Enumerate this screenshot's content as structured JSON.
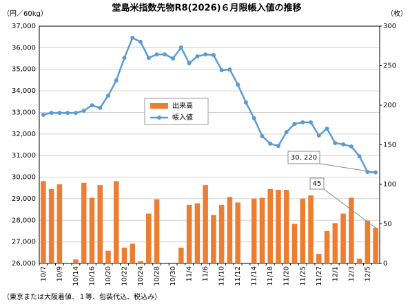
{
  "chart_data": {
    "type": "combo",
    "title": "堂島米指数先物R8(2026)６月限帳入値の推移",
    "y_unit": "（円／60kg）",
    "y2_unit": "（枚）",
    "footnote": "（東京または大阪着値、１等、包装代込、税込み）",
    "categories": [
      "10/7",
      null,
      "10/9",
      null,
      "10/14",
      null,
      "10/16",
      null,
      "10/20",
      null,
      "10/22",
      null,
      "10/24",
      null,
      "10/28",
      null,
      "10/30",
      null,
      "11/4",
      null,
      "11/6",
      null,
      "11/10",
      null,
      "11/12",
      null,
      "11/14",
      null,
      "11/18",
      null,
      "11/20",
      null,
      "11/25",
      null,
      "11/27",
      null,
      "12/1",
      null,
      "12/3",
      null,
      "12/5",
      null
    ],
    "series": [
      {
        "name": "出来高",
        "type": "bar",
        "axis": "y2",
        "color": "#ed7d31",
        "values": [
          104,
          94,
          100,
          0,
          5,
          102,
          83,
          99,
          16,
          104,
          20,
          25,
          3,
          63,
          81,
          0,
          0,
          20,
          74,
          76,
          99,
          61,
          74,
          84,
          77,
          0,
          82,
          83,
          94,
          93,
          93,
          50,
          82,
          86,
          12,
          41,
          51,
          63,
          83,
          6,
          54,
          45
        ],
        "value_labels": [
          null,
          null,
          null,
          null,
          null,
          null,
          null,
          null,
          null,
          null,
          null,
          null,
          null,
          null,
          null,
          null,
          null,
          null,
          null,
          null,
          null,
          null,
          null,
          null,
          null,
          null,
          null,
          null,
          null,
          null,
          null,
          null,
          null,
          null,
          null,
          null,
          null,
          null,
          null,
          null,
          null,
          "45"
        ]
      },
      {
        "name": "帳入値",
        "type": "line",
        "color": "#5b9bd5",
        "values": [
          32890,
          32980,
          32980,
          32980,
          32980,
          33080,
          33330,
          33210,
          33780,
          34480,
          35530,
          36460,
          36270,
          35530,
          35690,
          35690,
          35500,
          36010,
          35280,
          35600,
          35690,
          35660,
          34960,
          34990,
          34290,
          33460,
          32730,
          31900,
          31550,
          31450,
          32090,
          32470,
          32540,
          32540,
          31930,
          32250,
          31580,
          31520,
          31420,
          30970,
          30240,
          30220
        ],
        "value_labels": [
          null,
          null,
          null,
          null,
          null,
          null,
          null,
          null,
          null,
          null,
          null,
          null,
          null,
          null,
          null,
          null,
          null,
          null,
          null,
          null,
          null,
          null,
          null,
          null,
          null,
          null,
          null,
          null,
          null,
          null,
          null,
          null,
          null,
          null,
          null,
          null,
          null,
          null,
          null,
          null,
          null,
          "30, 220"
        ]
      }
    ],
    "ylim": [
      26000,
      37000
    ],
    "yticks": [
      {
        "value": 26000,
        "label": "26,000"
      },
      {
        "value": 27000,
        "label": "27,000"
      },
      {
        "value": 28000,
        "label": "28,000"
      },
      {
        "value": 29000,
        "label": "29,000"
      },
      {
        "value": 30000,
        "label": "30,000"
      },
      {
        "value": 31000,
        "label": "31,000"
      },
      {
        "value": 32000,
        "label": "32,000"
      },
      {
        "value": 33000,
        "label": "33,000"
      },
      {
        "value": 34000,
        "label": "34,000"
      },
      {
        "value": 35000,
        "label": "35,000"
      },
      {
        "value": 36000,
        "label": "36,000"
      },
      {
        "value": 37000,
        "label": "37,000"
      }
    ],
    "y2lim": [
      0,
      300
    ],
    "y2ticks": [
      0,
      50,
      100,
      150,
      200,
      250,
      300
    ],
    "grid": true
  }
}
